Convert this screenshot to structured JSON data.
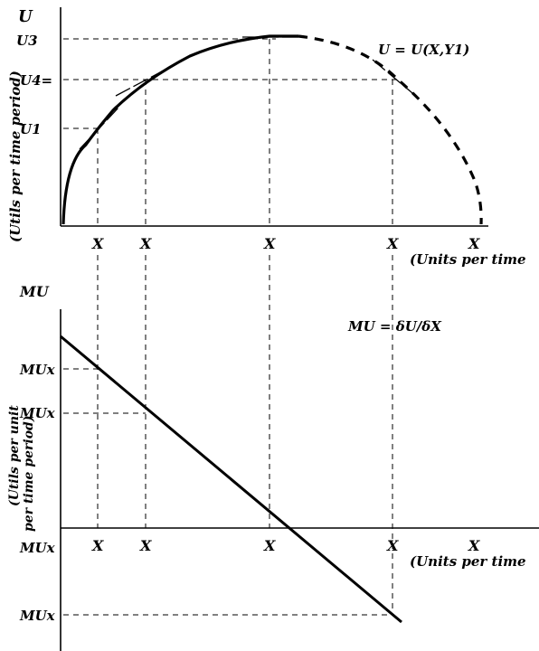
{
  "top_panel": {
    "y_axis_symbol": "U",
    "y_axis_unit": "(Utils per time period)",
    "y_ticks": [
      "U3",
      "U4=",
      "U1"
    ],
    "equation": "U = U(X,Y1)",
    "x_ticks": [
      "X",
      "X",
      "X",
      "X",
      "X"
    ],
    "x_axis_unit": "(Units per time"
  },
  "bottom_panel": {
    "y_axis_symbol": "MU",
    "y_axis_unit_line1": "(Utils per unit",
    "y_axis_unit_line2": "per time period)",
    "y_ticks": [
      "MUx",
      "MUx",
      "MUx",
      "MUx"
    ],
    "equation": "MU = δU/δX",
    "x_ticks": [
      "X",
      "X",
      "X",
      "X",
      "X"
    ],
    "x_axis_unit": "(Units per time"
  },
  "colors": {
    "ink": "#000000",
    "background": "#ffffff"
  }
}
